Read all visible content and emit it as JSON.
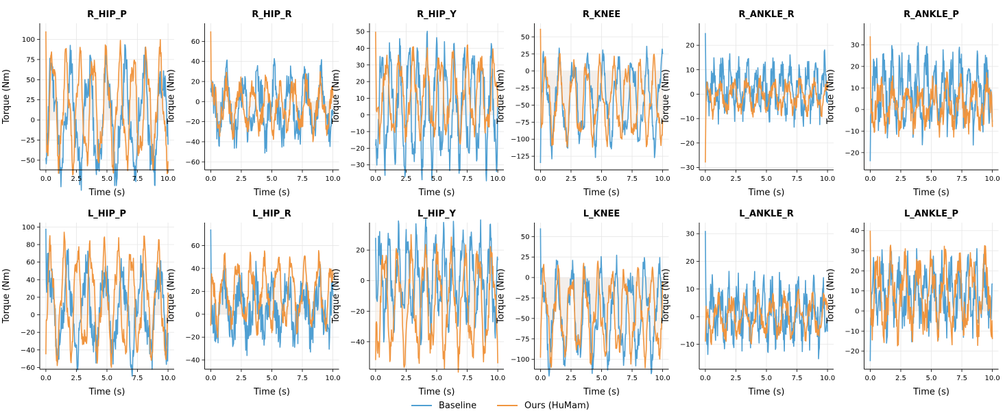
{
  "figure": {
    "x_axis_label": "Time (s)",
    "y_axis_label": "Torque (Nm)"
  },
  "colors": {
    "baseline": "#4f9fd2",
    "ours": "#f0953f",
    "baseline_fill": "#dfe9f1",
    "ours_fill": "#f6e6d6",
    "grid": "#e6e6e6"
  },
  "legend": {
    "baseline_label": "Baseline",
    "ours_label": "Ours (HuMam)"
  },
  "chart_data": [
    {
      "type": "line",
      "title": "R_HIP_P",
      "xlabel": "Time (s)",
      "ylabel": "Torque (Nm)",
      "xlim": [
        -0.5,
        10.5
      ],
      "ylim": [
        -62,
        120
      ],
      "xticks": [
        0,
        2.5,
        5,
        7.5,
        10
      ],
      "yticks": [
        -50,
        -25,
        0,
        25,
        50,
        75,
        100
      ],
      "x_tick_labels": [
        "0.0",
        "2.5",
        "5.0",
        "7.5",
        "10.0"
      ],
      "y_tick_labels": [
        "−50",
        "−25",
        "0",
        "25",
        "50",
        "75",
        "100"
      ],
      "series": [
        {
          "name": "Baseline",
          "amp": 60,
          "period": 1.5,
          "offset": 0,
          "jitter": 22,
          "spike": 0,
          "seed": 11
        },
        {
          "name": "Ours (HuMam)",
          "amp": 60,
          "period": 1.1,
          "offset": 15,
          "jitter": 10,
          "spike": 110,
          "seed": 12
        }
      ]
    },
    {
      "type": "line",
      "title": "R_HIP_R",
      "xlabel": "Time (s)",
      "ylabel": "Torque (Nm)",
      "xlim": [
        -0.5,
        10.5
      ],
      "ylim": [
        -68,
        78
      ],
      "xticks": [
        0,
        2.5,
        5,
        7.5,
        10
      ],
      "yticks": [
        -60,
        -40,
        -20,
        0,
        20,
        40,
        60
      ],
      "x_tick_labels": [
        "0.0",
        "2.5",
        "5.0",
        "7.5",
        "10.0"
      ],
      "y_tick_labels": [
        "−60",
        "−40",
        "−20",
        "0",
        "20",
        "40",
        "60"
      ],
      "series": [
        {
          "name": "Baseline",
          "amp": 25,
          "period": 1.3,
          "offset": -5,
          "jitter": 18,
          "spike": 0,
          "seed": 21
        },
        {
          "name": "Ours (HuMam)",
          "amp": 20,
          "period": 1.1,
          "offset": -5,
          "jitter": 10,
          "spike": 70,
          "seed": 22
        }
      ]
    },
    {
      "type": "line",
      "title": "R_HIP_Y",
      "xlabel": "Time (s)",
      "ylabel": "Torque (Nm)",
      "xlim": [
        -0.5,
        10.5
      ],
      "ylim": [
        -33,
        55
      ],
      "xticks": [
        0,
        2.5,
        5,
        7.5,
        10
      ],
      "yticks": [
        -30,
        -20,
        -10,
        0,
        10,
        20,
        30,
        40,
        50
      ],
      "x_tick_labels": [
        "0.0",
        "2.5",
        "5.0",
        "7.5",
        "10.0"
      ],
      "y_tick_labels": [
        "−30",
        "−20",
        "−10",
        "0",
        "10",
        "20",
        "30",
        "40",
        "50"
      ],
      "series": [
        {
          "name": "Baseline",
          "amp": 30,
          "period": 0.75,
          "offset": 5,
          "jitter": 10,
          "spike": 0,
          "seed": 31
        },
        {
          "name": "Ours (HuMam)",
          "amp": 20,
          "period": 1.1,
          "offset": 12,
          "jitter": 6,
          "spike": 50,
          "seed": 32
        }
      ]
    },
    {
      "type": "line",
      "title": "R_KNEE",
      "xlabel": "Time (s)",
      "ylabel": "Torque (Nm)",
      "xlim": [
        -0.5,
        10.5
      ],
      "ylim": [
        -145,
        70
      ],
      "xticks": [
        0,
        2.5,
        5,
        7.5,
        10
      ],
      "yticks": [
        -125,
        -100,
        -75,
        -50,
        -25,
        0,
        25,
        50
      ],
      "x_tick_labels": [
        "0.0",
        "2.5",
        "5.0",
        "7.5",
        "10.0"
      ],
      "y_tick_labels": [
        "−125",
        "−100",
        "−75",
        "−50",
        "−25",
        "0",
        "25",
        "50"
      ],
      "series": [
        {
          "name": "Baseline",
          "amp": 55,
          "period": 1.2,
          "offset": -45,
          "jitter": 15,
          "spike": -135,
          "seed": 41
        },
        {
          "name": "Ours (HuMam)",
          "amp": 50,
          "period": 1.1,
          "offset": -45,
          "jitter": 10,
          "spike": 62,
          "seed": 42
        }
      ]
    },
    {
      "type": "line",
      "title": "R_ANKLE_R",
      "xlabel": "Time (s)",
      "ylabel": "Torque (Nm)",
      "xlim": [
        -0.5,
        10.5
      ],
      "ylim": [
        -31,
        29
      ],
      "xticks": [
        0,
        2.5,
        5,
        7.5,
        10
      ],
      "yticks": [
        -30,
        -20,
        -10,
        0,
        10,
        20
      ],
      "x_tick_labels": [
        "0.0",
        "2.5",
        "5.0",
        "7.5",
        "10.0"
      ],
      "y_tick_labels": [
        "−30",
        "−20",
        "−10",
        "0",
        "10",
        "20"
      ],
      "series": [
        {
          "name": "Baseline",
          "amp": 8,
          "period": 0.7,
          "offset": 2,
          "jitter": 7,
          "spike": 25,
          "seed": 51
        },
        {
          "name": "Ours (HuMam)",
          "amp": 5,
          "period": 1.1,
          "offset": -1,
          "jitter": 3,
          "spike": -28,
          "seed": 52
        }
      ]
    },
    {
      "type": "line",
      "title": "R_ANKLE_P",
      "xlabel": "Time (s)",
      "ylabel": "Torque (Nm)",
      "xlim": [
        -0.5,
        10.5
      ],
      "ylim": [
        -28,
        40
      ],
      "xticks": [
        0,
        2.5,
        5,
        7.5,
        10
      ],
      "yticks": [
        -20,
        -10,
        0,
        10,
        20,
        30
      ],
      "x_tick_labels": [
        "0.0",
        "2.5",
        "5.0",
        "7.5",
        "10.0"
      ],
      "y_tick_labels": [
        "−20",
        "−10",
        "0",
        "10",
        "20",
        "30"
      ],
      "series": [
        {
          "name": "Baseline",
          "amp": 12,
          "period": 0.7,
          "offset": 8,
          "jitter": 10,
          "spike": -24,
          "seed": 61
        },
        {
          "name": "Ours (HuMam)",
          "amp": 8,
          "period": 1.1,
          "offset": 2,
          "jitter": 6,
          "spike": 34,
          "seed": 62
        }
      ]
    },
    {
      "type": "line",
      "title": "L_HIP_P",
      "xlabel": "Time (s)",
      "ylabel": "Torque (Nm)",
      "xlim": [
        -0.5,
        10.5
      ],
      "ylim": [
        -62,
        105
      ],
      "xticks": [
        0,
        2.5,
        5,
        7.5,
        10
      ],
      "yticks": [
        -60,
        -40,
        -20,
        0,
        20,
        40,
        60,
        80,
        100
      ],
      "x_tick_labels": [
        "0.0",
        "2.5",
        "5.0",
        "7.5",
        "10.0"
      ],
      "y_tick_labels": [
        "−60",
        "−40",
        "−20",
        "0",
        "20",
        "40",
        "60",
        "80",
        "100"
      ],
      "series": [
        {
          "name": "Baseline",
          "amp": 45,
          "period": 1.5,
          "offset": 5,
          "jitter": 20,
          "spike": 98,
          "seed": 71
        },
        {
          "name": "Ours (HuMam)",
          "amp": 55,
          "period": 1.1,
          "offset": 15,
          "jitter": 10,
          "spike": -45,
          "seed": 72
        }
      ]
    },
    {
      "type": "line",
      "title": "L_HIP_R",
      "xlabel": "Time (s)",
      "ylabel": "Torque (Nm)",
      "xlim": [
        -0.5,
        10.5
      ],
      "ylim": [
        -48,
        80
      ],
      "xticks": [
        0,
        2.5,
        5,
        7.5,
        10
      ],
      "yticks": [
        -40,
        -20,
        0,
        20,
        40,
        60
      ],
      "x_tick_labels": [
        "0.0",
        "2.5",
        "5.0",
        "7.5",
        "10.0"
      ],
      "y_tick_labels": [
        "−40",
        "−20",
        "0",
        "20",
        "40",
        "60"
      ],
      "series": [
        {
          "name": "Baseline",
          "amp": 20,
          "period": 1.3,
          "offset": 5,
          "jitter": 18,
          "spike": 74,
          "seed": 81
        },
        {
          "name": "Ours (HuMam)",
          "amp": 25,
          "period": 1.1,
          "offset": 18,
          "jitter": 8,
          "spike": -10,
          "seed": 82
        }
      ]
    },
    {
      "type": "line",
      "title": "L_HIP_Y",
      "xlabel": "Time (s)",
      "ylabel": "Torque (Nm)",
      "xlim": [
        -0.5,
        10.5
      ],
      "ylim": [
        -58,
        38
      ],
      "xticks": [
        0,
        2.5,
        5,
        7.5,
        10
      ],
      "yticks": [
        -40,
        -20,
        0,
        20
      ],
      "x_tick_labels": [
        "0.0",
        "2.5",
        "5.0",
        "7.5",
        "10.0"
      ],
      "y_tick_labels": [
        "−40",
        "−20",
        "0",
        "20"
      ],
      "series": [
        {
          "name": "Baseline",
          "amp": 25,
          "period": 0.75,
          "offset": 0,
          "jitter": 12,
          "spike": 28,
          "seed": 91
        },
        {
          "name": "Ours (HuMam)",
          "amp": 30,
          "period": 1.1,
          "offset": -15,
          "jitter": 8,
          "spike": -52,
          "seed": 92
        }
      ]
    },
    {
      "type": "line",
      "title": "L_KNEE",
      "xlabel": "Time (s)",
      "ylabel": "Torque (Nm)",
      "xlim": [
        -0.5,
        10.5
      ],
      "ylim": [
        -112,
        67
      ],
      "xticks": [
        0,
        2.5,
        5,
        7.5,
        10
      ],
      "yticks": [
        -100,
        -75,
        -50,
        -25,
        0,
        25,
        50
      ],
      "x_tick_labels": [
        "0.0",
        "2.5",
        "5.0",
        "7.5",
        "10.0"
      ],
      "y_tick_labels": [
        "−100",
        "−75",
        "−50",
        "−25",
        "0",
        "25",
        "50"
      ],
      "series": [
        {
          "name": "Baseline",
          "amp": 50,
          "period": 1.2,
          "offset": -45,
          "jitter": 15,
          "spike": 60,
          "seed": 101
        },
        {
          "name": "Ours (HuMam)",
          "amp": 45,
          "period": 1.1,
          "offset": -45,
          "jitter": 10,
          "spike": -98,
          "seed": 102
        }
      ]
    },
    {
      "type": "line",
      "title": "L_ANKLE_R",
      "xlabel": "Time (s)",
      "ylabel": "Torque (Nm)",
      "xlim": [
        -0.5,
        10.5
      ],
      "ylim": [
        -19,
        34
      ],
      "xticks": [
        0,
        2.5,
        5,
        7.5,
        10
      ],
      "yticks": [
        -10,
        0,
        10,
        20,
        30
      ],
      "x_tick_labels": [
        "0.0",
        "2.5",
        "5.0",
        "7.5",
        "10.0"
      ],
      "y_tick_labels": [
        "−10",
        "0",
        "10",
        "20",
        "30"
      ],
      "series": [
        {
          "name": "Baseline",
          "amp": 8,
          "period": 0.7,
          "offset": 1,
          "jitter": 7,
          "spike": 31,
          "seed": 111
        },
        {
          "name": "Ours (HuMam)",
          "amp": 6,
          "period": 1.1,
          "offset": 0,
          "jitter": 3,
          "spike": -9,
          "seed": 112
        }
      ]
    },
    {
      "type": "line",
      "title": "L_ANKLE_P",
      "xlabel": "Time (s)",
      "ylabel": "Torque (Nm)",
      "xlim": [
        -0.5,
        10.5
      ],
      "ylim": [
        -29,
        44
      ],
      "xticks": [
        0,
        2.5,
        5,
        7.5,
        10
      ],
      "yticks": [
        -20,
        -10,
        0,
        10,
        20,
        30,
        40
      ],
      "x_tick_labels": [
        "0.0",
        "2.5",
        "5.0",
        "7.5",
        "10.0"
      ],
      "y_tick_labels": [
        "−20",
        "−10",
        "0",
        "10",
        "20",
        "30",
        "40"
      ],
      "series": [
        {
          "name": "Baseline",
          "amp": 12,
          "period": 0.7,
          "offset": 8,
          "jitter": 10,
          "spike": -25,
          "seed": 121
        },
        {
          "name": "Ours (HuMam)",
          "amp": 15,
          "period": 1.1,
          "offset": 8,
          "jitter": 8,
          "spike": 40,
          "seed": 122
        }
      ]
    }
  ]
}
